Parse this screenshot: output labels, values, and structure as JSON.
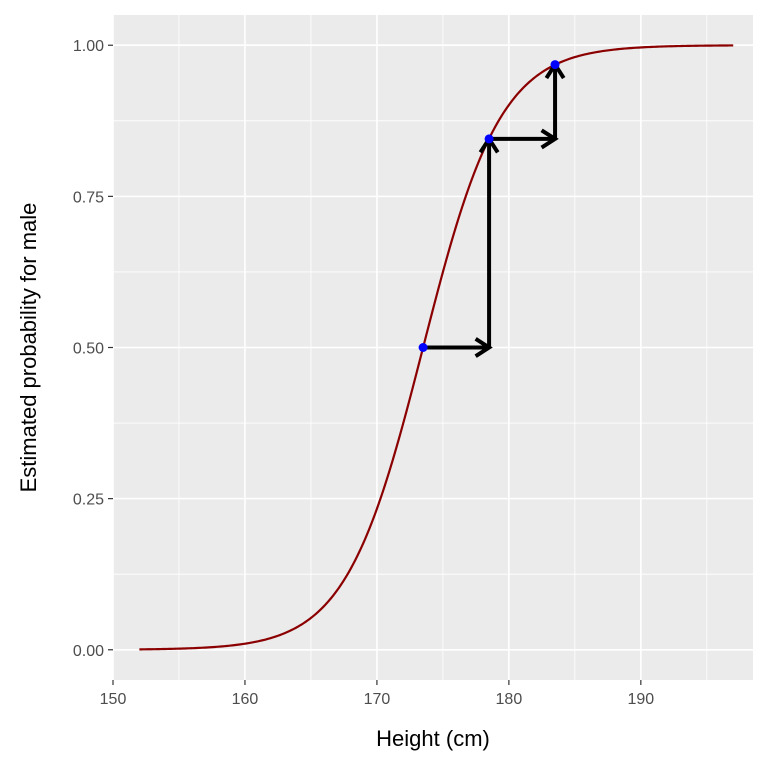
{
  "chart_data": {
    "type": "line",
    "title": "",
    "xlabel": "Height (cm)",
    "ylabel": "Estimated probability for male",
    "xlim": [
      150,
      198.5
    ],
    "ylim": [
      -0.05,
      1.05
    ],
    "x_ticks": [
      150,
      160,
      170,
      180,
      190
    ],
    "x_tick_labels": [
      "150",
      "160",
      "170",
      "180",
      "190"
    ],
    "y_ticks": [
      0,
      0.25,
      0.5,
      0.75,
      1.0
    ],
    "y_tick_labels": [
      "0.00",
      "0.25",
      "0.50",
      "0.75",
      "1.00"
    ],
    "grid": true,
    "curve": {
      "model": "logistic",
      "midpoint": 173.5,
      "slope": 0.34,
      "x_range": [
        152,
        197
      ],
      "color": "#8b0000"
    },
    "points": [
      {
        "x": 173.5,
        "y": 0.5
      },
      {
        "x": 178.5,
        "y": 0.845
      },
      {
        "x": 183.5,
        "y": 0.968
      }
    ],
    "point_color": "#0000ff",
    "arrows": [
      {
        "from": [
          173.5,
          0.5
        ],
        "to": [
          178.5,
          0.5
        ]
      },
      {
        "from": [
          178.5,
          0.5
        ],
        "to": [
          178.5,
          0.845
        ]
      },
      {
        "from": [
          178.5,
          0.845
        ],
        "to": [
          183.5,
          0.845
        ]
      },
      {
        "from": [
          183.5,
          0.845
        ],
        "to": [
          183.5,
          0.968
        ]
      }
    ],
    "arrow_color": "#000000",
    "panel_background": "#ebebeb",
    "grid_color": "#ffffff"
  }
}
